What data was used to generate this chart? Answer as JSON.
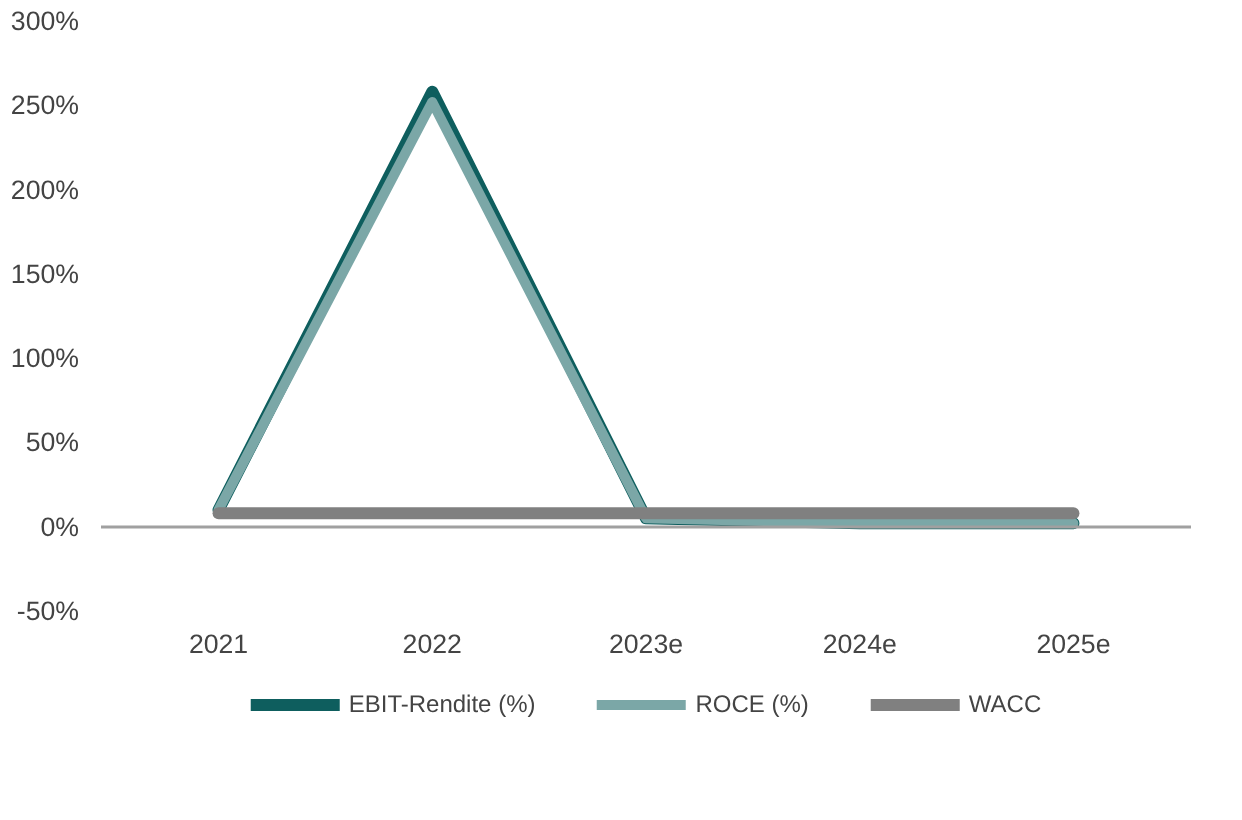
{
  "chart_data": {
    "type": "line",
    "categories": [
      "2021",
      "2022",
      "2023e",
      "2024e",
      "2025e"
    ],
    "series": [
      {
        "name": "EBIT-Rendite (%)",
        "color": "#0e5e5e",
        "values": [
          10,
          258,
          5,
          2,
          2
        ]
      },
      {
        "name": "ROCE (%)",
        "color": "#7ba7a7",
        "values": [
          10,
          252,
          5,
          2,
          2
        ]
      },
      {
        "name": "WACC",
        "color": "#808080",
        "values": [
          8,
          8,
          8,
          8,
          8
        ]
      }
    ],
    "ylim": [
      -50,
      300
    ],
    "yticks": [
      {
        "value": -50,
        "label": "-50%"
      },
      {
        "value": 0,
        "label": "0%"
      },
      {
        "value": 50,
        "label": "50%"
      },
      {
        "value": 100,
        "label": "100%"
      },
      {
        "value": 150,
        "label": "150%"
      },
      {
        "value": 200,
        "label": "200%"
      },
      {
        "value": 250,
        "label": "250%"
      },
      {
        "value": 300,
        "label": "300%"
      }
    ],
    "legend": "bottom",
    "marker": "none",
    "line_style": "solid"
  }
}
